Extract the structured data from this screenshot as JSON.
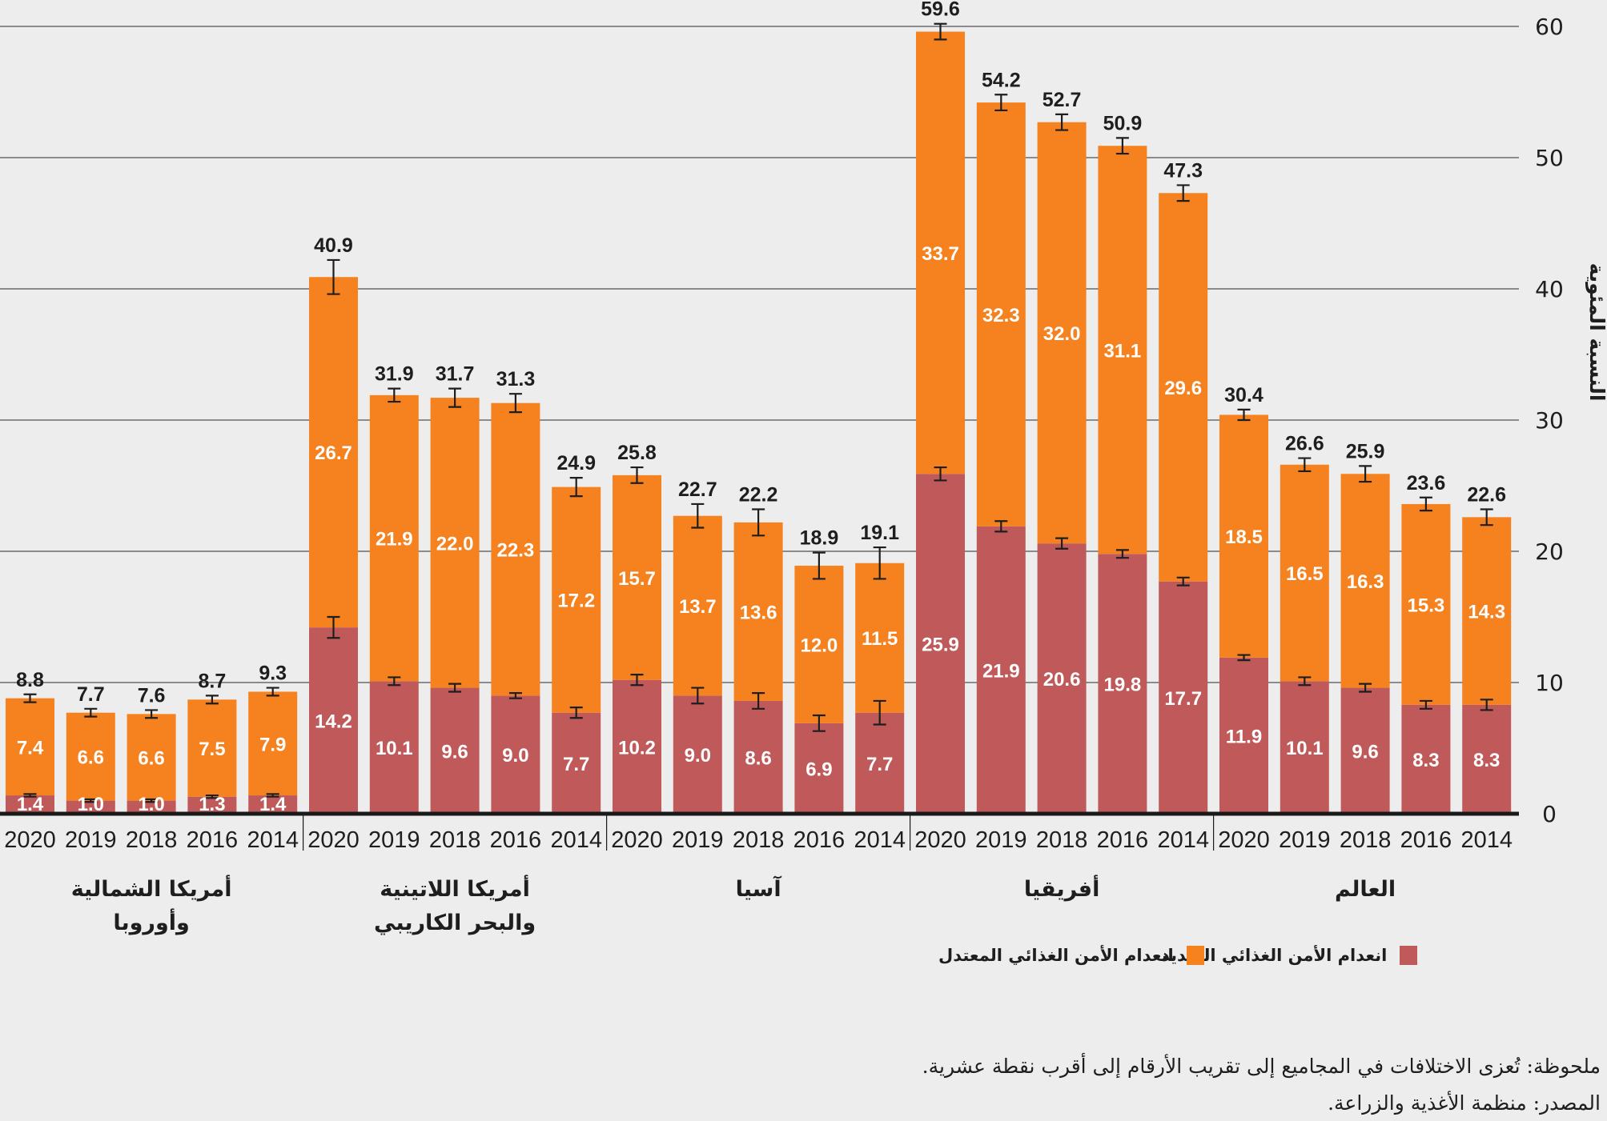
{
  "chart_data": {
    "type": "bar",
    "stacked": true,
    "title": "",
    "xlabel": "",
    "ylabel": "النسبة المئوية",
    "ylim": [
      0,
      60
    ],
    "yticks": [
      0,
      10,
      20,
      30,
      40,
      50,
      60
    ],
    "grid": true,
    "legend_position": "bottom-right",
    "colors": {
      "severe": "#c05a5a",
      "moderate": "#f5821f",
      "background": "#ededed"
    },
    "series": [
      {
        "key": "severe",
        "name": "انعدام الأمن الغذائي الشديد"
      },
      {
        "key": "moderate",
        "name": "انعدام الأمن الغذائي المعتدل"
      }
    ],
    "groups": [
      {
        "label_lines": [
          "أمريكا الشمالية",
          "وأوروبا"
        ],
        "bars": [
          {
            "year": "2020",
            "severe": 1.4,
            "moderate": 7.4,
            "total": 8.8,
            "err_total": 0.3,
            "err_severe": 0.1
          },
          {
            "year": "2019",
            "severe": 1.0,
            "moderate": 6.6,
            "total": 7.7,
            "err_total": 0.3,
            "err_severe": 0.1
          },
          {
            "year": "2018",
            "severe": 1.0,
            "moderate": 6.6,
            "total": 7.6,
            "err_total": 0.3,
            "err_severe": 0.1
          },
          {
            "year": "2016",
            "severe": 1.3,
            "moderate": 7.5,
            "total": 8.7,
            "err_total": 0.3,
            "err_severe": 0.1
          },
          {
            "year": "2014",
            "severe": 1.4,
            "moderate": 7.9,
            "total": 9.3,
            "err_total": 0.3,
            "err_severe": 0.1
          }
        ]
      },
      {
        "label_lines": [
          "أمريكا اللاتينية",
          "والبحر الكاريبي"
        ],
        "bars": [
          {
            "year": "2020",
            "severe": 14.2,
            "moderate": 26.7,
            "total": 40.9,
            "err_total": 1.3,
            "err_severe": 0.8
          },
          {
            "year": "2019",
            "severe": 10.1,
            "moderate": 21.9,
            "total": 31.9,
            "err_total": 0.5,
            "err_severe": 0.3
          },
          {
            "year": "2018",
            "severe": 9.6,
            "moderate": 22.0,
            "total": 31.7,
            "err_total": 0.7,
            "err_severe": 0.3
          },
          {
            "year": "2016",
            "severe": 9.0,
            "moderate": 22.3,
            "total": 31.3,
            "err_total": 0.7,
            "err_severe": 0.2
          },
          {
            "year": "2014",
            "severe": 7.7,
            "moderate": 17.2,
            "total": 24.9,
            "err_total": 0.7,
            "err_severe": 0.4
          }
        ]
      },
      {
        "label_lines": [
          "آسيا"
        ],
        "bars": [
          {
            "year": "2020",
            "severe": 10.2,
            "moderate": 15.7,
            "total": 25.8,
            "err_total": 0.6,
            "err_severe": 0.4
          },
          {
            "year": "2019",
            "severe": 9.0,
            "moderate": 13.7,
            "total": 22.7,
            "err_total": 0.9,
            "err_severe": 0.6
          },
          {
            "year": "2018",
            "severe": 8.6,
            "moderate": 13.6,
            "total": 22.2,
            "err_total": 1.0,
            "err_severe": 0.6
          },
          {
            "year": "2016",
            "severe": 6.9,
            "moderate": 12.0,
            "total": 18.9,
            "err_total": 1.0,
            "err_severe": 0.6
          },
          {
            "year": "2014",
            "severe": 7.7,
            "moderate": 11.5,
            "total": 19.1,
            "err_total": 1.2,
            "err_severe": 0.9
          }
        ]
      },
      {
        "label_lines": [
          "أفريقيا"
        ],
        "bars": [
          {
            "year": "2020",
            "severe": 25.9,
            "moderate": 33.7,
            "total": 59.6,
            "err_total": 0.6,
            "err_severe": 0.5
          },
          {
            "year": "2019",
            "severe": 21.9,
            "moderate": 32.3,
            "total": 54.2,
            "err_total": 0.6,
            "err_severe": 0.4
          },
          {
            "year": "2018",
            "severe": 20.6,
            "moderate": 32.0,
            "total": 52.7,
            "err_total": 0.6,
            "err_severe": 0.4
          },
          {
            "year": "2016",
            "severe": 19.8,
            "moderate": 31.1,
            "total": 50.9,
            "err_total": 0.6,
            "err_severe": 0.3
          },
          {
            "year": "2014",
            "severe": 17.7,
            "moderate": 29.6,
            "total": 47.3,
            "err_total": 0.6,
            "err_severe": 0.3
          }
        ]
      },
      {
        "label_lines": [
          "العالم"
        ],
        "bars": [
          {
            "year": "2020",
            "severe": 11.9,
            "moderate": 18.5,
            "total": 30.4,
            "err_total": 0.4,
            "err_severe": 0.2
          },
          {
            "year": "2019",
            "severe": 10.1,
            "moderate": 16.5,
            "total": 26.6,
            "err_total": 0.5,
            "err_severe": 0.3
          },
          {
            "year": "2018",
            "severe": 9.6,
            "moderate": 16.3,
            "total": 25.9,
            "err_total": 0.6,
            "err_severe": 0.3
          },
          {
            "year": "2016",
            "severe": 8.3,
            "moderate": 15.3,
            "total": 23.6,
            "err_total": 0.5,
            "err_severe": 0.3
          },
          {
            "year": "2014",
            "severe": 8.3,
            "moderate": 14.3,
            "total": 22.6,
            "err_total": 0.6,
            "err_severe": 0.4
          }
        ]
      }
    ]
  },
  "legend": {
    "severe_label": "انعدام الأمن الغذائي الشديد",
    "moderate_label": "انعدام الأمن الغذائي المعتدل"
  },
  "footer": {
    "note": "ملحوظة: تُعزى الاختلافات في المجاميع إلى تقريب الأرقام إلى أقرب نقطة عشرية.",
    "source": "المصدر: منظمة الأغذية والزراعة."
  }
}
